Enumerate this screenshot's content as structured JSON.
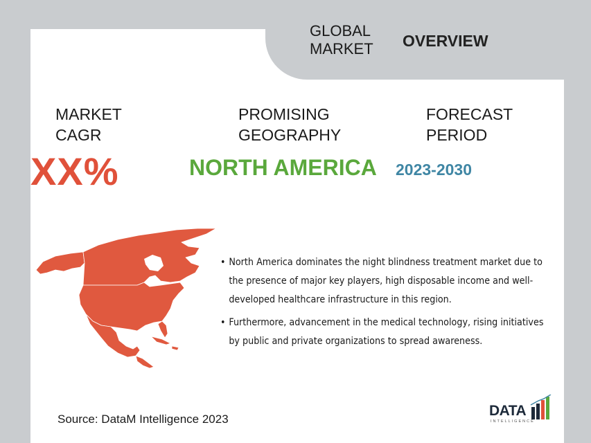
{
  "header": {
    "tab_left": "GLOBAL\nMARKET",
    "tab_right": "OVERVIEW"
  },
  "metrics": {
    "cagr_label": "MARKET\nCAGR",
    "cagr_value": "XX%",
    "geo_label": "PROMISING\nGEOGRAPHY",
    "geo_value": "NORTH AMERICA",
    "period_label": "FORECAST\nPERIOD",
    "period_value": "2023-2030"
  },
  "bullets": [
    "North America dominates the night blindness treatment market due to the presence of major key players, high disposable income and well-developed healthcare infrastructure in this region.",
    "Furthermore, advancement in the medical technology, rising initiatives by public and private organizations to spread awareness."
  ],
  "source": "Source: DataM Intelligence 2023",
  "logo": {
    "text": "DATA",
    "subtext": "INTELLIGENCE"
  },
  "colors": {
    "cagr": "#e0513a",
    "geography": "#5aa83c",
    "period": "#3f86a4",
    "map": "#e0593f",
    "background": "#c9cccf"
  },
  "icons": {
    "map": "north-america-map-icon",
    "logo": "datam-logo-icon"
  }
}
